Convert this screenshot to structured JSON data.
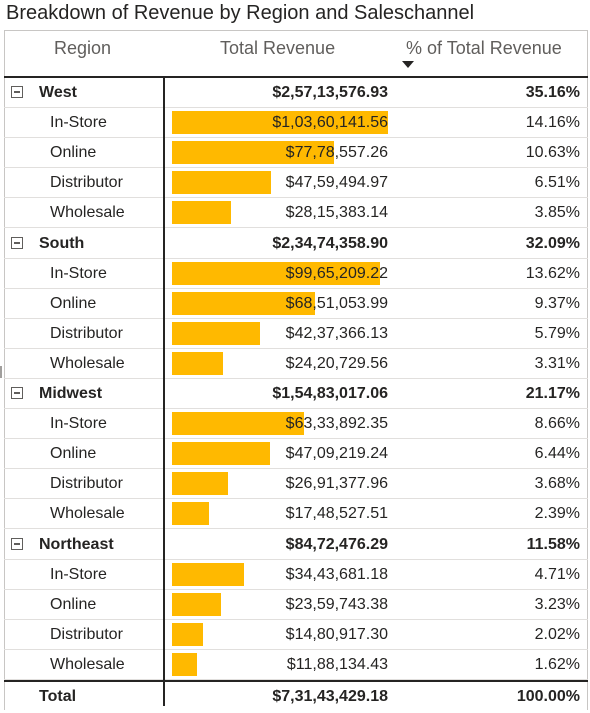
{
  "title": "Breakdown of Revenue by Region and Saleschannel",
  "columns": {
    "region": "Region",
    "revenue": "Total Revenue",
    "pct": "% of Total Revenue"
  },
  "colors": {
    "bar": "#ffb900",
    "text": "#252423",
    "header": "#605e5c"
  },
  "chart_data": {
    "type": "table",
    "title": "Breakdown of Revenue by Region and Saleschannel",
    "sort": {
      "column": "% of Total Revenue",
      "direction": "descending"
    },
    "bar_max": 10360141.56,
    "groups": [
      {
        "name": "West",
        "revenue": "$2,57,13,576.93",
        "pct": "35.16%",
        "rows": [
          {
            "channel": "In-Store",
            "revenue": "$1,03,60,141.56",
            "value": 10360141.56,
            "pct": "14.16%"
          },
          {
            "channel": "Online",
            "revenue": "$77,78,557.26",
            "value": 7778557.26,
            "pct": "10.63%"
          },
          {
            "channel": "Distributor",
            "revenue": "$47,59,494.97",
            "value": 4759494.97,
            "pct": "6.51%"
          },
          {
            "channel": "Wholesale",
            "revenue": "$28,15,383.14",
            "value": 2815383.14,
            "pct": "3.85%"
          }
        ]
      },
      {
        "name": "South",
        "revenue": "$2,34,74,358.90",
        "pct": "32.09%",
        "rows": [
          {
            "channel": "In-Store",
            "revenue": "$99,65,209.22",
            "value": 9965209.22,
            "pct": "13.62%"
          },
          {
            "channel": "Online",
            "revenue": "$68,51,053.99",
            "value": 6851053.99,
            "pct": "9.37%"
          },
          {
            "channel": "Distributor",
            "revenue": "$42,37,366.13",
            "value": 4237366.13,
            "pct": "5.79%"
          },
          {
            "channel": "Wholesale",
            "revenue": "$24,20,729.56",
            "value": 2420729.56,
            "pct": "3.31%"
          }
        ]
      },
      {
        "name": "Midwest",
        "revenue": "$1,54,83,017.06",
        "pct": "21.17%",
        "rows": [
          {
            "channel": "In-Store",
            "revenue": "$63,33,892.35",
            "value": 6333892.35,
            "pct": "8.66%"
          },
          {
            "channel": "Online",
            "revenue": "$47,09,219.24",
            "value": 4709219.24,
            "pct": "6.44%"
          },
          {
            "channel": "Distributor",
            "revenue": "$26,91,377.96",
            "value": 2691377.96,
            "pct": "3.68%"
          },
          {
            "channel": "Wholesale",
            "revenue": "$17,48,527.51",
            "value": 1748527.51,
            "pct": "2.39%"
          }
        ]
      },
      {
        "name": "Northeast",
        "revenue": "$84,72,476.29",
        "pct": "11.58%",
        "rows": [
          {
            "channel": "In-Store",
            "revenue": "$34,43,681.18",
            "value": 3443681.18,
            "pct": "4.71%"
          },
          {
            "channel": "Online",
            "revenue": "$23,59,743.38",
            "value": 2359743.38,
            "pct": "3.23%"
          },
          {
            "channel": "Distributor",
            "revenue": "$14,80,917.30",
            "value": 1480917.3,
            "pct": "2.02%"
          },
          {
            "channel": "Wholesale",
            "revenue": "$11,88,134.43",
            "value": 1188134.43,
            "pct": "1.62%"
          }
        ]
      }
    ],
    "total": {
      "label": "Total",
      "revenue": "$7,31,43,429.18",
      "pct": "100.00%"
    }
  }
}
